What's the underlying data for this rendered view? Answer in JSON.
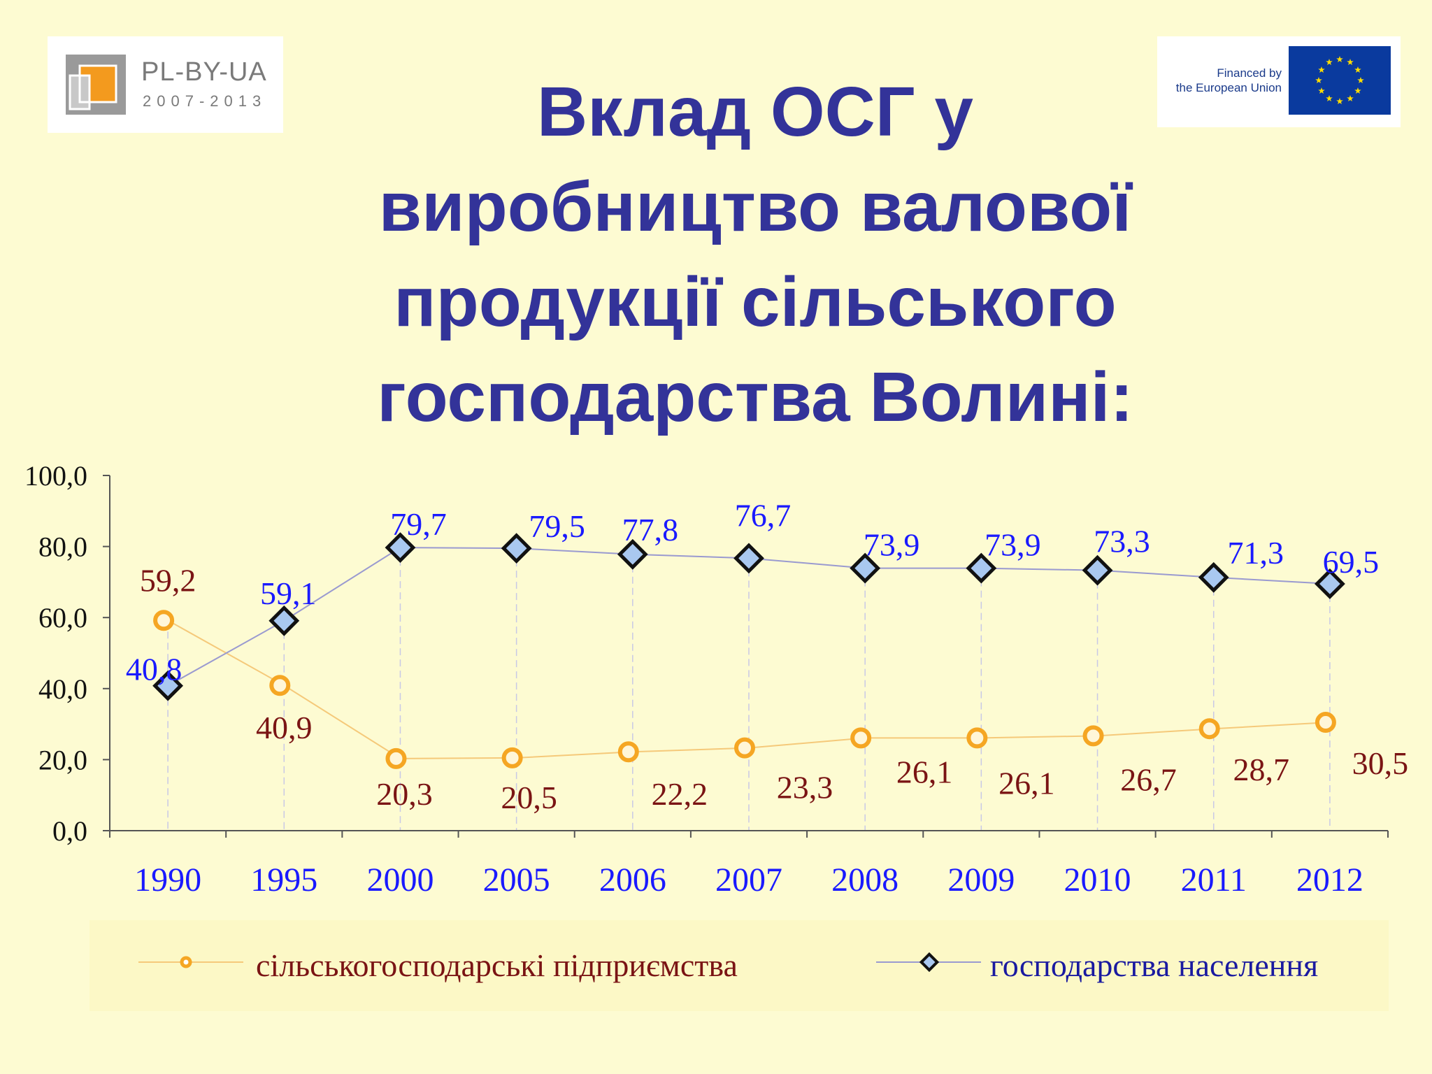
{
  "logos": {
    "left": {
      "name": "PL-BY-UA",
      "years": "2007-2013"
    },
    "right": {
      "line1": "Financed by",
      "line2": "the European Union"
    }
  },
  "title": {
    "lines": [
      "Вклад ОСГ у",
      "виробництво валової",
      "продукції сільського",
      "господарства Волині:"
    ]
  },
  "colors": {
    "title": "#333399",
    "enterprise_series": "#f5a623",
    "enterprise_labels": "#7a1414",
    "households_fill": "#a9c8f0",
    "households_labels": "#1a1aff",
    "x_labels": "#1a1aff"
  },
  "chart_data": {
    "type": "line",
    "categories": [
      "1990",
      "1995",
      "2000",
      "2005",
      "2006",
      "2007",
      "2008",
      "2009",
      "2010",
      "2011",
      "2012"
    ],
    "y_ticks": [
      "0,0",
      "20,0",
      "40,0",
      "60,0",
      "80,0",
      "100,0"
    ],
    "ylim": [
      0,
      100
    ],
    "grid": false,
    "legend_position": "bottom",
    "series": [
      {
        "name": "сільськогосподарські підприємства",
        "marker": "circle",
        "values": [
          59.2,
          40.9,
          20.3,
          20.5,
          22.2,
          23.3,
          26.1,
          26.1,
          26.7,
          28.7,
          30.5
        ],
        "labels": [
          "59,2",
          "40,9",
          "20,3",
          "20,5",
          "22,2",
          "23,3",
          "26,1",
          "26,1",
          "26,7",
          "28,7",
          "30,5"
        ]
      },
      {
        "name": "господарства населення",
        "marker": "diamond",
        "values": [
          40.8,
          59.1,
          79.7,
          79.5,
          77.8,
          76.7,
          73.9,
          73.9,
          73.3,
          71.3,
          69.5
        ],
        "labels": [
          "40,8",
          "59,1",
          "79,7",
          "79,5",
          "77,8",
          "76,7",
          "73,9",
          "73,9",
          "73,3",
          "71,3",
          "69,5"
        ]
      }
    ]
  }
}
